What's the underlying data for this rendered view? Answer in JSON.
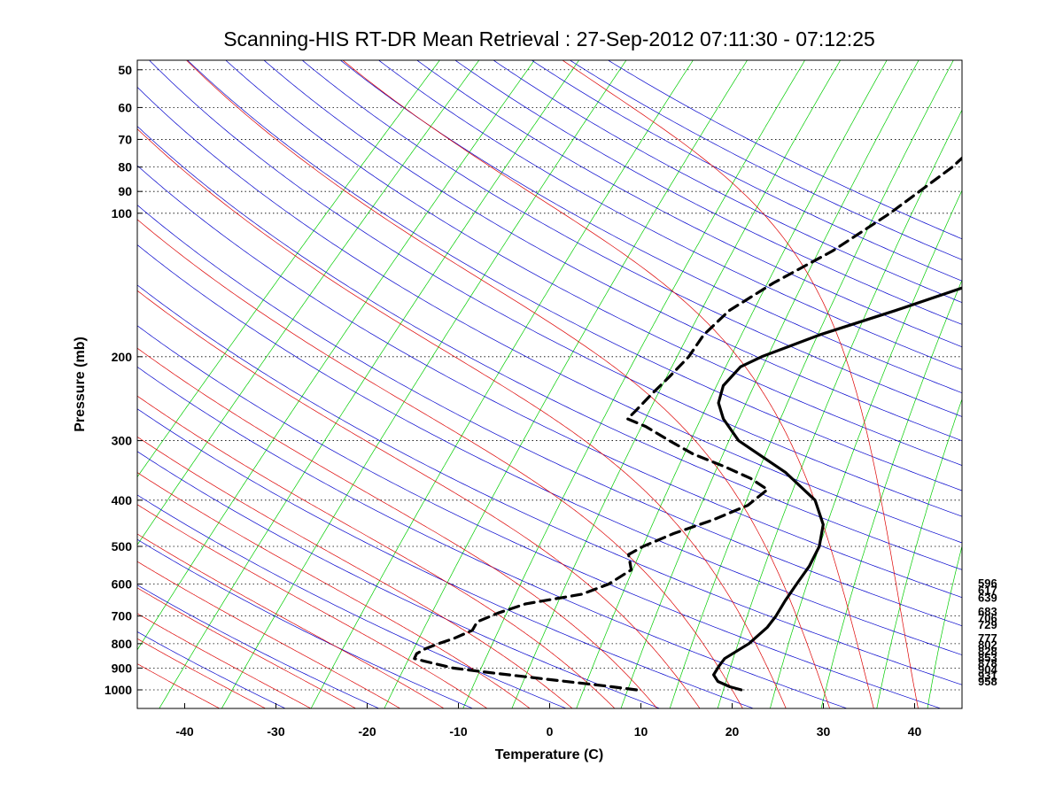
{
  "chart_data": {
    "type": "line",
    "chart_kind": "skew-T log-P diagram",
    "title": "Scanning-HIS RT-DR Mean Retrieval : 27-Sep-2012 07:11:30 - 07:12:25",
    "xlabel": "Temperature (C)",
    "ylabel": "Pressure (mb)",
    "xlim": [
      -45,
      45
    ],
    "ylim": [
      1070,
      45
    ],
    "x_ticks": [
      "-40",
      "-30",
      "-20",
      "-10",
      "0",
      "10",
      "20",
      "30",
      "40"
    ],
    "y_ticks": [
      "50",
      "60",
      "70",
      "80",
      "90",
      "100",
      "200",
      "300",
      "400",
      "500",
      "600",
      "700",
      "800",
      "900",
      "1000"
    ],
    "right_labels": [
      "596",
      "617",
      "639",
      "683",
      "706",
      "729",
      "777",
      "802",
      "828",
      "853",
      "878",
      "904",
      "931",
      "958"
    ],
    "colors": {
      "dry_adiabats": "#0000cc",
      "moist_adiabats": "#dd0000",
      "mixing_ratio": "#00cc00",
      "gridlines": "#000000",
      "temperature": "#000000",
      "dewpoint": "#000000"
    },
    "series": [
      {
        "name": "Temperature",
        "style": "solid",
        "points": [
          {
            "p": 1000,
            "t": 21.0
          },
          {
            "p": 985,
            "t": 19.4
          },
          {
            "p": 960,
            "t": 17.5
          },
          {
            "p": 930,
            "t": 16.3
          },
          {
            "p": 890,
            "t": 15.9
          },
          {
            "p": 860,
            "t": 15.7
          },
          {
            "p": 800,
            "t": 16.7
          },
          {
            "p": 740,
            "t": 16.9
          },
          {
            "p": 700,
            "t": 16.6
          },
          {
            "p": 650,
            "t": 15.9
          },
          {
            "p": 600,
            "t": 15.3
          },
          {
            "p": 550,
            "t": 14.7
          },
          {
            "p": 500,
            "t": 13.6
          },
          {
            "p": 450,
            "t": 11.6
          },
          {
            "p": 400,
            "t": 8.0
          },
          {
            "p": 350,
            "t": 1.7
          },
          {
            "p": 300,
            "t": -7.0
          },
          {
            "p": 270,
            "t": -11.1
          },
          {
            "p": 250,
            "t": -13.4
          },
          {
            "p": 230,
            "t": -14.8
          },
          {
            "p": 210,
            "t": -15.0
          },
          {
            "p": 200,
            "t": -13.8
          },
          {
            "p": 180,
            "t": -9.9
          },
          {
            "p": 160,
            "t": -4.3
          },
          {
            "p": 140,
            "t": 1.6
          },
          {
            "p": 120,
            "t": 6.8
          },
          {
            "p": 100,
            "t": 11.1
          },
          {
            "p": 90,
            "t": 13.3
          },
          {
            "p": 80,
            "t": 15.5
          },
          {
            "p": 70,
            "t": 17.2
          },
          {
            "p": 60,
            "t": 19.0
          },
          {
            "p": 50,
            "t": 20.9
          },
          {
            "p": 45,
            "t": 21.0
          }
        ]
      },
      {
        "name": "Dewpoint",
        "style": "dashed",
        "points": [
          {
            "p": 1000,
            "t": 9.5
          },
          {
            "p": 980,
            "t": 5.4
          },
          {
            "p": 950,
            "t": -1.5
          },
          {
            "p": 920,
            "t": -8.5
          },
          {
            "p": 900,
            "t": -13.0
          },
          {
            "p": 870,
            "t": -17.0
          },
          {
            "p": 860,
            "t": -18.3
          },
          {
            "p": 840,
            "t": -18.6
          },
          {
            "p": 820,
            "t": -18.2
          },
          {
            "p": 800,
            "t": -17.3
          },
          {
            "p": 780,
            "t": -16.2
          },
          {
            "p": 750,
            "t": -15.1
          },
          {
            "p": 720,
            "t": -15.5
          },
          {
            "p": 690,
            "t": -14.2
          },
          {
            "p": 660,
            "t": -12.2
          },
          {
            "p": 630,
            "t": -7.1
          },
          {
            "p": 600,
            "t": -5.3
          },
          {
            "p": 560,
            "t": -4.4
          },
          {
            "p": 520,
            "t": -6.4
          },
          {
            "p": 500,
            "t": -5.7
          },
          {
            "p": 470,
            "t": -3.8
          },
          {
            "p": 440,
            "t": -1.0
          },
          {
            "p": 410,
            "t": 1.2
          },
          {
            "p": 380,
            "t": 1.6
          },
          {
            "p": 360,
            "t": -1.5
          },
          {
            "p": 340,
            "t": -5.7
          },
          {
            "p": 320,
            "t": -10.5
          },
          {
            "p": 300,
            "t": -14.6
          },
          {
            "p": 280,
            "t": -18.8
          },
          {
            "p": 270,
            "t": -21.6
          },
          {
            "p": 260,
            "t": -21.6
          },
          {
            "p": 240,
            "t": -21.7
          },
          {
            "p": 220,
            "t": -21.7
          },
          {
            "p": 200,
            "t": -21.8
          },
          {
            "p": 180,
            "t": -22.6
          },
          {
            "p": 160,
            "t": -22.5
          },
          {
            "p": 140,
            "t": -20.7
          },
          {
            "p": 120,
            "t": -17.8
          },
          {
            "p": 100,
            "t": -15.7
          },
          {
            "p": 90,
            "t": -14.9
          },
          {
            "p": 80,
            "t": -14.0
          },
          {
            "p": 70,
            "t": -13.8
          },
          {
            "p": 60,
            "t": -13.4
          },
          {
            "p": 50,
            "t": -12.8
          },
          {
            "p": 45,
            "t": -12.5
          }
        ]
      }
    ],
    "background_lines": {
      "dry_adiabat_theta_K": [
        240,
        250,
        260,
        270,
        280,
        290,
        300,
        310,
        320,
        330,
        340,
        350,
        360,
        370,
        380,
        390,
        400,
        410,
        420,
        430,
        440,
        450,
        460,
        470,
        480,
        490,
        500
      ],
      "moist_adiabat_base_C": [
        -40,
        -35,
        -30,
        -25,
        -20,
        -15,
        -10,
        -5,
        0,
        5,
        10,
        15,
        20,
        25,
        30,
        35,
        40
      ],
      "mixing_ratio_g_kg": [
        0.01,
        0.02,
        0.05,
        0.1,
        0.2,
        0.5,
        1,
        2,
        3,
        5,
        7,
        10,
        14,
        20,
        28,
        40,
        55,
        75,
        100
      ]
    }
  }
}
